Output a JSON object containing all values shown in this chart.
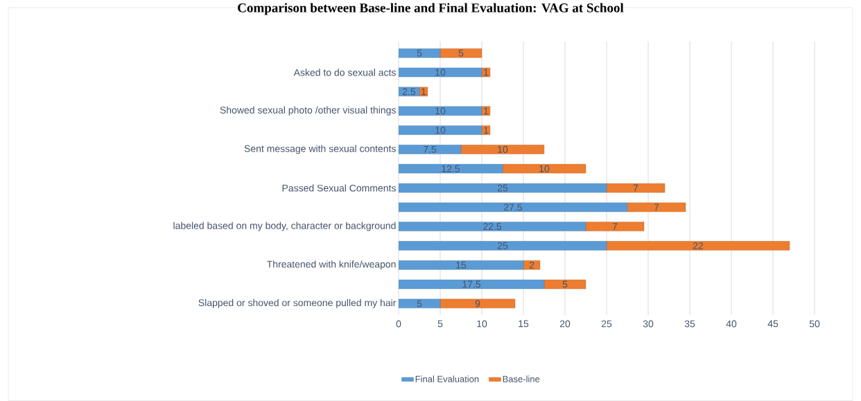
{
  "chart_data": {
    "type": "bar",
    "orientation": "horizontal",
    "stacked": true,
    "title": "Comparison between Base-line and Final Evaluation: VAG at School",
    "categories": [
      null,
      "Asked to do sexual acts",
      null,
      "Showed sexual photo /other visual things",
      null,
      "Sent message with sexual contents",
      null,
      "Passed Sexual Comments",
      null,
      "labeled based on my body, character or background",
      null,
      "Threatened with knife/weapon",
      null,
      "Slapped or shoved or someone pulled my hair"
    ],
    "series": [
      {
        "name": "Final Evaluation",
        "color": "#5b9bd5",
        "values": [
          5,
          10,
          2.5,
          10,
          10,
          7.5,
          12.5,
          25,
          27.5,
          22.5,
          25,
          15,
          17.5,
          5
        ]
      },
      {
        "name": "Base-line",
        "color": "#ed7d31",
        "values": [
          5,
          1,
          1,
          1,
          1,
          10,
          10,
          7,
          7,
          7,
          22,
          2,
          5,
          9
        ]
      }
    ],
    "xlim": [
      0,
      50
    ],
    "xticks": [
      0,
      5,
      10,
      15,
      20,
      25,
      30,
      35,
      40,
      45,
      50
    ],
    "grid": "x",
    "legend": "bottom",
    "data_labels": true
  }
}
